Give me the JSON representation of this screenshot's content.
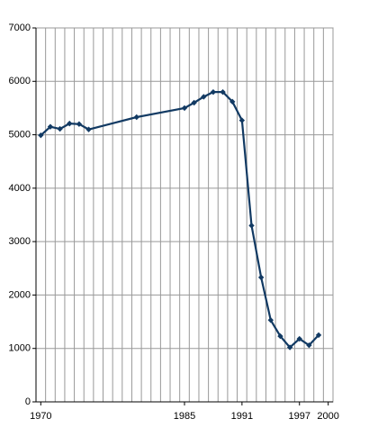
{
  "chart_data": {
    "type": "line",
    "x": [
      1970,
      1971,
      1972,
      1973,
      1974,
      1975,
      1980,
      1985,
      1986,
      1987,
      1988,
      1989,
      1990,
      1991,
      1992,
      1993,
      1994,
      1995,
      1996,
      1997,
      1998,
      1999
    ],
    "series": [
      {
        "color": "#123a63",
        "values": [
          4990,
          5150,
          5110,
          5210,
          5200,
          5100,
          5330,
          5500,
          5600,
          5710,
          5800,
          5800,
          5620,
          5270,
          3300,
          2330,
          1530,
          1230,
          1020,
          1180,
          1060,
          1250
        ]
      }
    ],
    "xlim": [
      1969.5,
      2000.5
    ],
    "xticks": [
      1970,
      1985,
      1991,
      1997,
      2000
    ],
    "ylim": [
      0,
      7000
    ],
    "yticks": [
      0,
      1000,
      2000,
      3000,
      4000,
      5000,
      6000,
      7000
    ],
    "grid": true
  }
}
